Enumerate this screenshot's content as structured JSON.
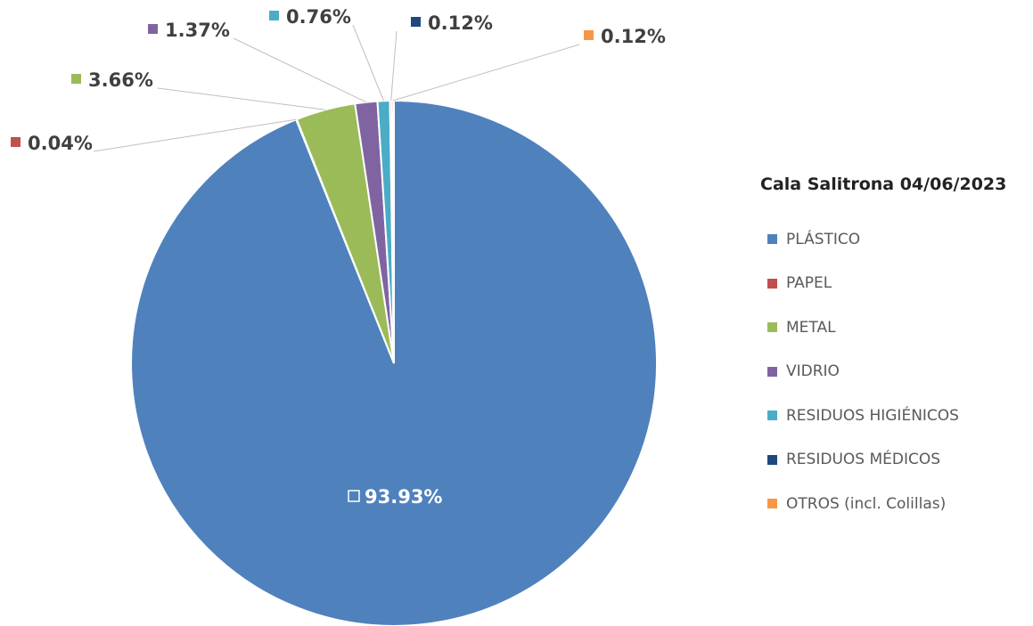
{
  "chart_data": {
    "type": "pie",
    "legend_title": "Cala Salitrona 04/06/2023",
    "legend_position": "right",
    "slices": [
      {
        "label": "PLÁSTICO",
        "value": 93.93,
        "display": "93.93%",
        "color": "#4f81bd"
      },
      {
        "label": "PAPEL",
        "value": 0.04,
        "display": "0.04%",
        "color": "#c0504d"
      },
      {
        "label": "METAL",
        "value": 3.66,
        "display": "3.66%",
        "color": "#9bbb59"
      },
      {
        "label": "VIDRIO",
        "value": 1.37,
        "display": "1.37%",
        "color": "#8064a2"
      },
      {
        "label": "RESIDUOS HIGIÉNICOS",
        "value": 0.76,
        "display": "0.76%",
        "color": "#4bacc6"
      },
      {
        "label": "RESIDUOS MÉDICOS",
        "value": 0.12,
        "display": "0.12%",
        "color": "#1f497d"
      },
      {
        "label": "OTROS (incl. Colillas)",
        "value": 0.12,
        "display": "0.12%",
        "color": "#f79646"
      }
    ]
  }
}
